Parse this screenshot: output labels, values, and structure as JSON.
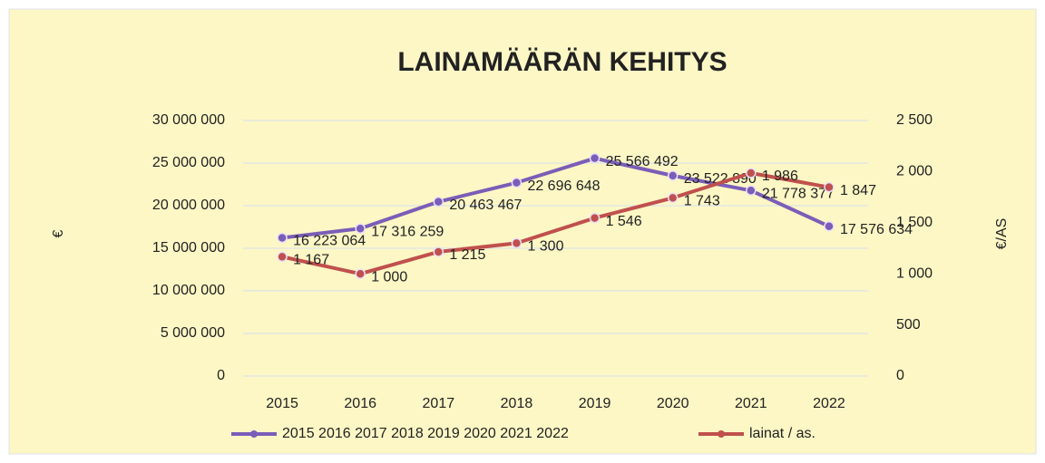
{
  "chart_data": {
    "type": "line",
    "title": "LAINAMÄÄRÄN KEHITYS",
    "y_label": "€",
    "y2_label": "€/AS",
    "categories": [
      "2015",
      "2016",
      "2017",
      "2018",
      "2019",
      "2020",
      "2021",
      "2022"
    ],
    "series": [
      {
        "name": "2015 2016 2017 2018 2019 2020 2021 2022",
        "color": "#7b5db8",
        "values": [
          16223064,
          17316259,
          20463467,
          22696648,
          25566492,
          23522890,
          21778377,
          17576634
        ],
        "value_labels": [
          "16 223 064",
          "17 316 259",
          "20 463 467",
          "22 696 648",
          "25 566 492",
          "23 522 890",
          "21 778 377",
          "17 576 634"
        ]
      },
      {
        "name": "lainat / as.",
        "color": "#c0504d",
        "axis": "y2",
        "values": [
          1167,
          1000,
          1215,
          1300,
          1546,
          1743,
          1986,
          1847
        ],
        "value_labels": [
          "1 167",
          "1 000",
          "1 215",
          "1 300",
          "1 546",
          "1 743",
          "1 986",
          "1 847"
        ]
      }
    ],
    "ylim": [
      0,
      30000000
    ],
    "yticks": [
      0,
      {
        "value": 5000000,
        "label": "5 000 000"
      },
      {
        "value": 10000000,
        "label": "10 000 000"
      },
      {
        "value": 15000000,
        "label": "15 000 000"
      },
      {
        "value": 20000000,
        "label": "20 000 000"
      },
      {
        "value": 25000000,
        "label": "25 000 000"
      },
      {
        "value": 30000000,
        "label": "30 000 000"
      }
    ],
    "y2lim": [
      0,
      2500
    ],
    "y2ticks": [
      0,
      500,
      {
        "value": 1000,
        "label": "1 000"
      },
      {
        "value": 1500,
        "label": "1 500"
      },
      {
        "value": 2000,
        "label": "2 000"
      },
      {
        "value": 2500,
        "label": "2 500"
      }
    ],
    "grid": true,
    "legend": "bottom"
  }
}
